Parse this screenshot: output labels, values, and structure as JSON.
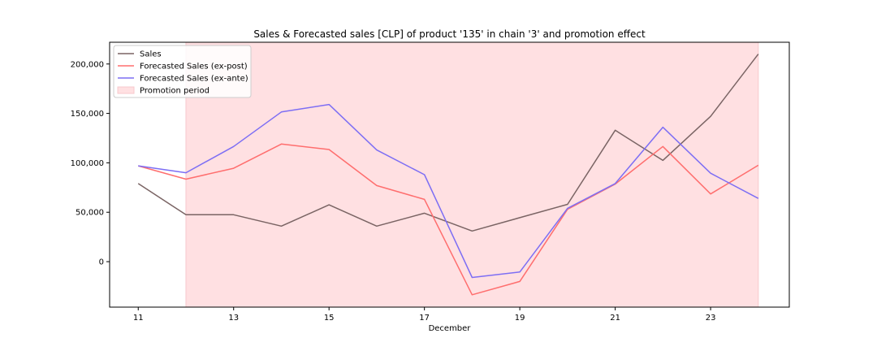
{
  "chart_data": {
    "type": "line",
    "title": "Sales & Forecasted sales [CLP] of product '135' in chain '3' and promotion effect",
    "xlabel": "December",
    "ylabel": "",
    "x": [
      11,
      12,
      13,
      14,
      15,
      16,
      17,
      18,
      19,
      20,
      21,
      22,
      23,
      24
    ],
    "xlim": [
      10.4,
      24.65
    ],
    "ylim": [
      -46000,
      222000
    ],
    "xticks": [
      "11",
      "13",
      "15",
      "17",
      "19",
      "21",
      "23"
    ],
    "xtick_values": [
      11,
      13,
      15,
      17,
      19,
      21,
      23
    ],
    "yticks": [
      "0",
      "50,000",
      "100,000",
      "150,000",
      "200,000"
    ],
    "ytick_values": [
      0,
      50000,
      100000,
      150000,
      200000
    ],
    "grid": false,
    "legend_position": "upper-left",
    "series": [
      {
        "name": "Sales",
        "color": "#7a6464",
        "values": [
          79000,
          47500,
          47500,
          36000,
          57500,
          36000,
          49000,
          31000,
          44500,
          58000,
          133000,
          102500,
          147000,
          210000
        ]
      },
      {
        "name": "Forecasted Sales (ex-post)",
        "color": "#ff6e6e",
        "values": [
          97000,
          83500,
          94500,
          119000,
          113500,
          77000,
          63000,
          -33500,
          -20000,
          53000,
          78500,
          116500,
          68500,
          97500
        ]
      },
      {
        "name": "Forecasted Sales (ex-ante)",
        "color": "#7d6ef4",
        "values": [
          97000,
          90000,
          116500,
          151500,
          159000,
          113000,
          88000,
          -16000,
          -10500,
          54000,
          79000,
          136000,
          89500,
          64000
        ]
      }
    ],
    "promotion": {
      "name": "Promotion period",
      "color": "#ffe0e2",
      "edge_color": "#f7c8cc",
      "x_start": 12,
      "x_end": 24
    }
  }
}
